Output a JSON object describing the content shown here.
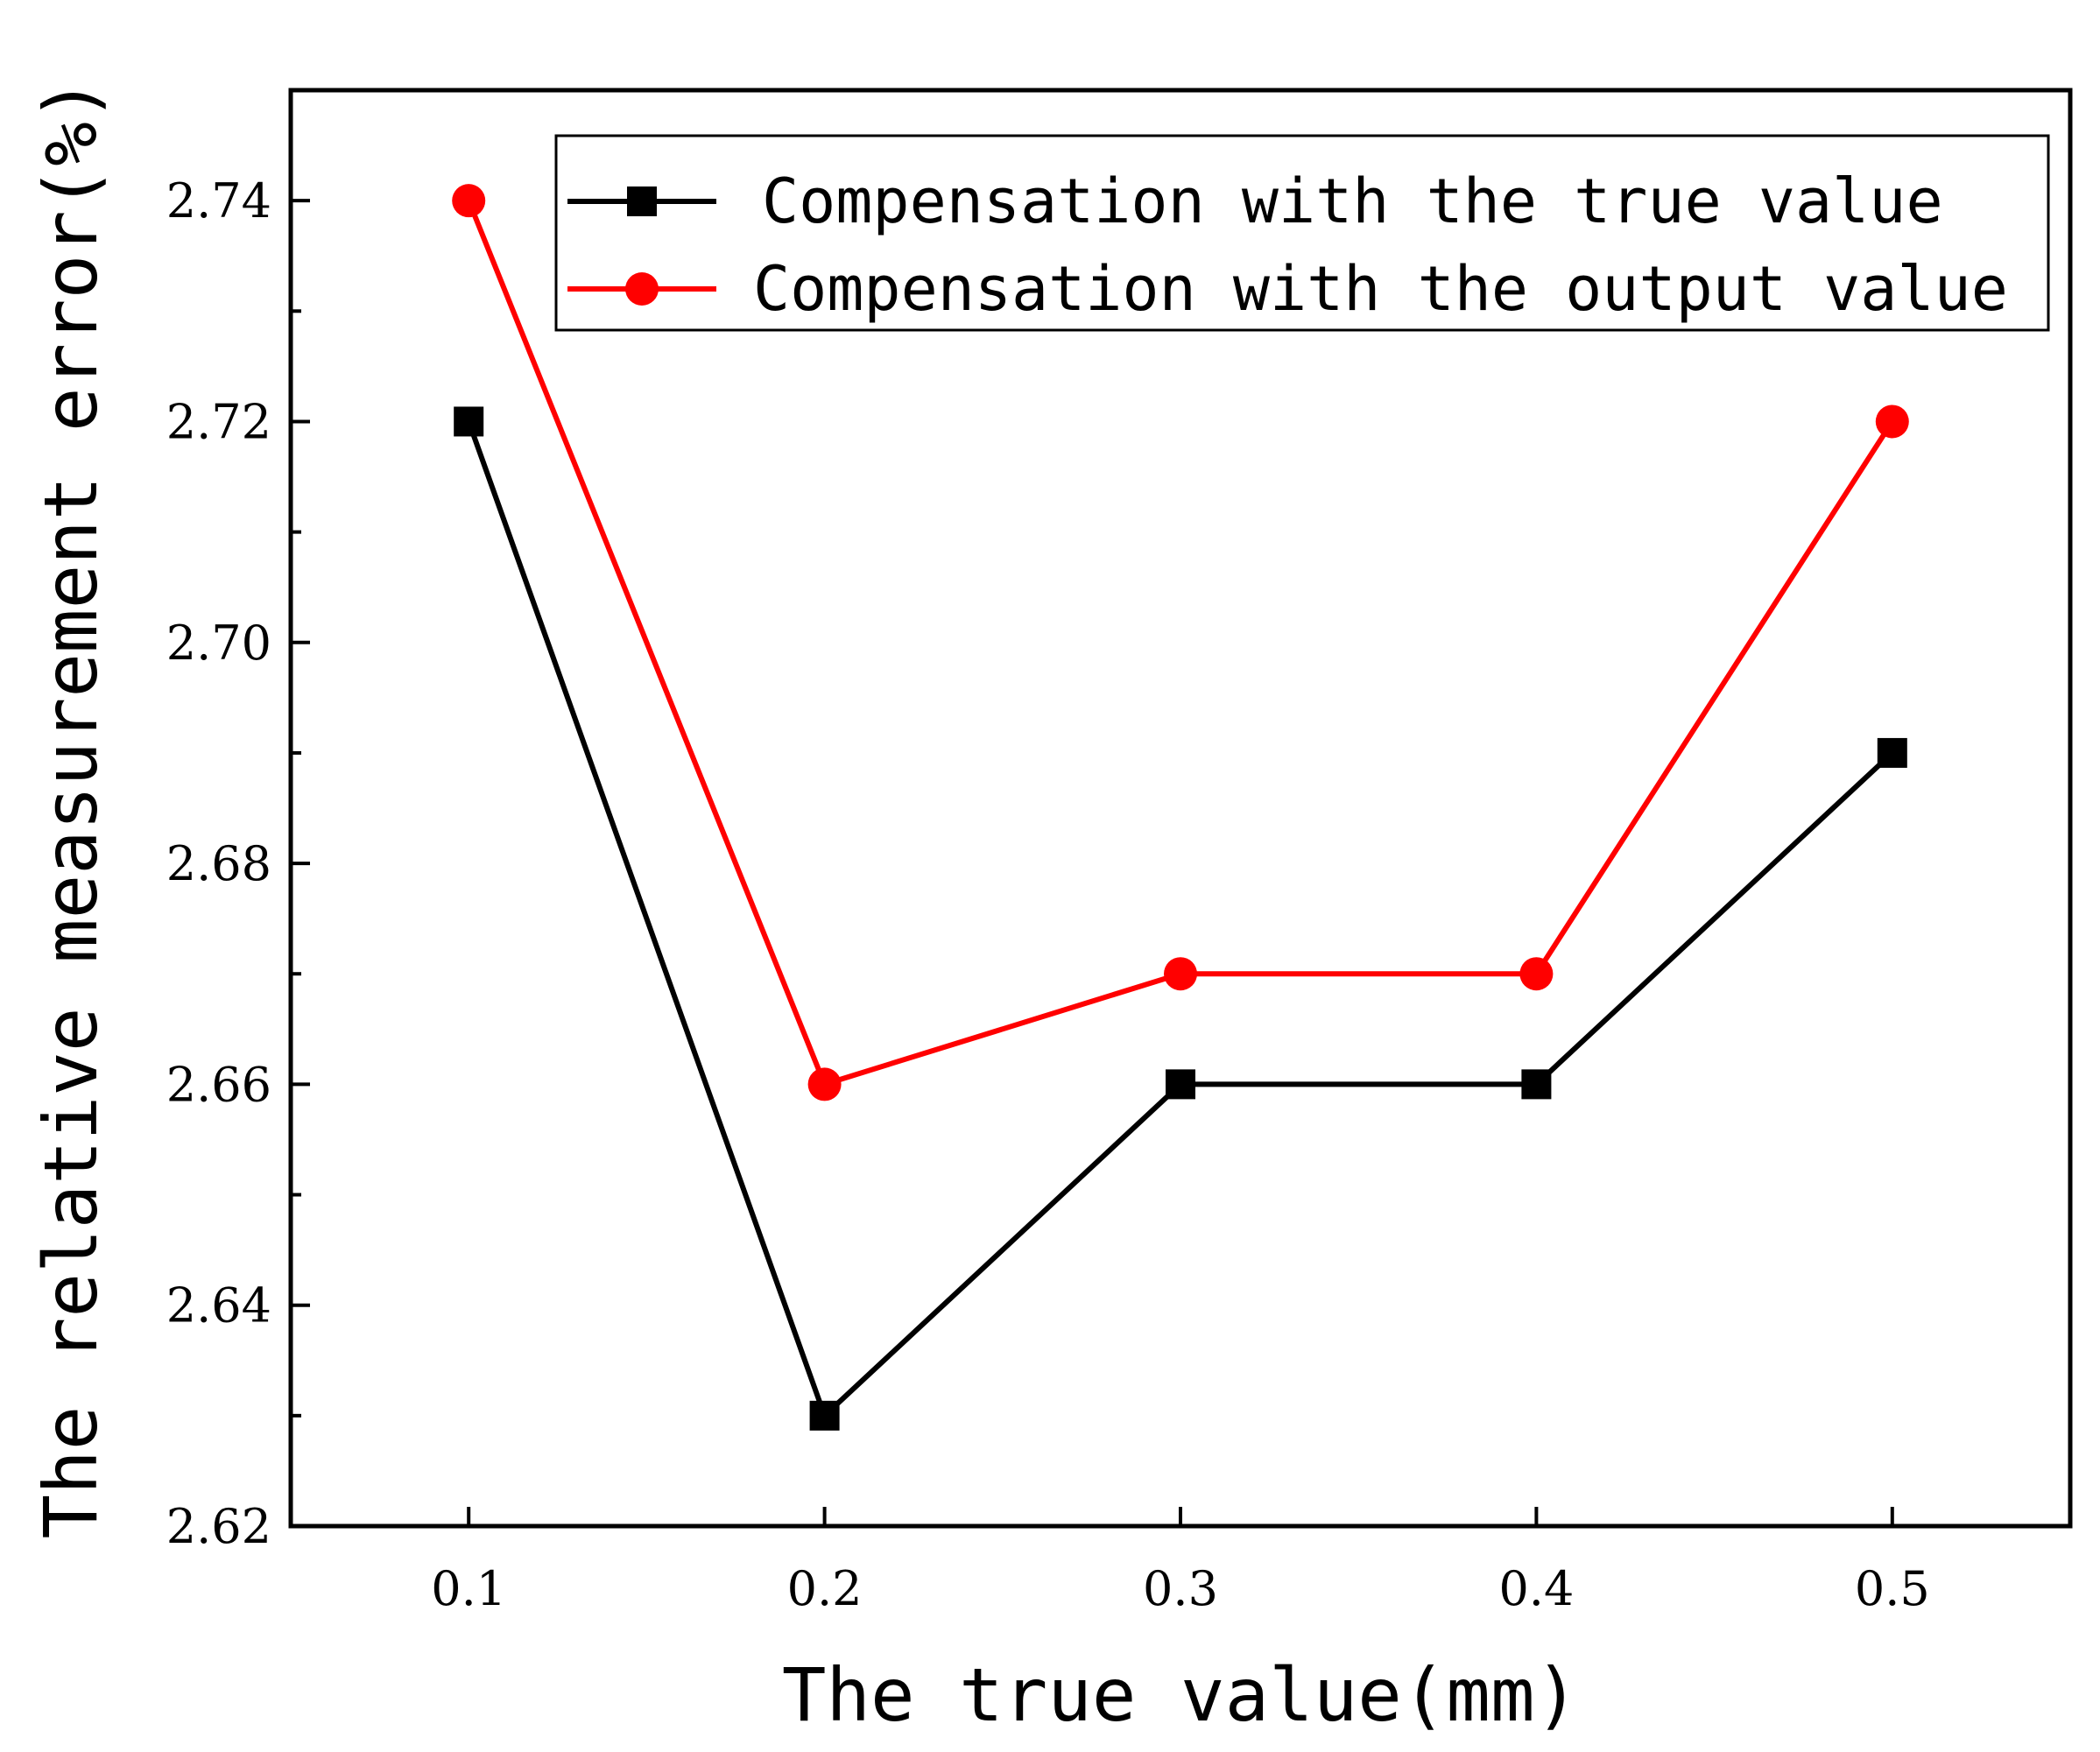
{
  "chart_data": {
    "type": "line",
    "title": "",
    "xlabel": "The true value(mm)",
    "ylabel": "The relative measurement error(%)",
    "x": [
      0.1,
      0.2,
      0.3,
      0.4,
      0.5
    ],
    "x_tick_labels": [
      "0.1",
      "0.2",
      "0.3",
      "0.4",
      "0.5"
    ],
    "xlim": [
      0.05,
      0.55
    ],
    "ylim": [
      2.62,
      2.75
    ],
    "y_ticks": [
      2.62,
      2.64,
      2.66,
      2.68,
      2.7,
      2.72,
      2.74
    ],
    "y_tick_labels": [
      "2.62",
      "2.64",
      "2.66",
      "2.68",
      "2.70",
      "2.72",
      "2.74"
    ],
    "grid": false,
    "legend_position": "top-right",
    "series": [
      {
        "name": "Compensation with the true value",
        "color": "#000000",
        "marker": "square",
        "values": [
          2.72,
          2.63,
          2.66,
          2.66,
          2.69
        ]
      },
      {
        "name": "Compensation with the output value",
        "color": "#ff0000",
        "marker": "circle",
        "values": [
          2.74,
          2.66,
          2.67,
          2.67,
          2.72
        ]
      }
    ]
  }
}
